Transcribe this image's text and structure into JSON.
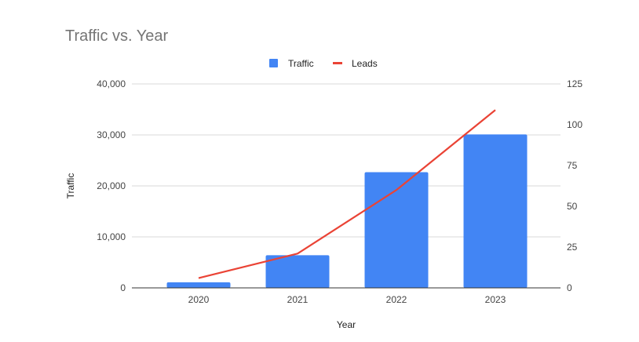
{
  "chart_data": {
    "type": "bar+line",
    "title": "Traffic vs. Year",
    "xlabel": "Year",
    "ylabel": "Traffic",
    "ylabel_right": "",
    "categories": [
      "2020",
      "2021",
      "2022",
      "2023"
    ],
    "series": [
      {
        "name": "Traffic",
        "type": "bar",
        "axis": "left",
        "color": "#4285f4",
        "values": [
          1100,
          6400,
          22700,
          30100
        ]
      },
      {
        "name": "Leads",
        "type": "line",
        "axis": "right",
        "color": "#ea4335",
        "values": [
          6,
          21,
          60,
          109
        ]
      }
    ],
    "ylim": [
      0,
      40000
    ],
    "yticks": [
      "0",
      "10,000",
      "20,000",
      "30,000",
      "40,000"
    ],
    "ytick_values": [
      0,
      10000,
      20000,
      30000,
      40000
    ],
    "ylim_right": [
      0,
      125
    ],
    "yticks_right": [
      "0",
      "25",
      "50",
      "75",
      "100",
      "125"
    ],
    "ytick_values_right": [
      0,
      25,
      50,
      75,
      100,
      125
    ],
    "grid": true,
    "legend_position": "top-center"
  }
}
